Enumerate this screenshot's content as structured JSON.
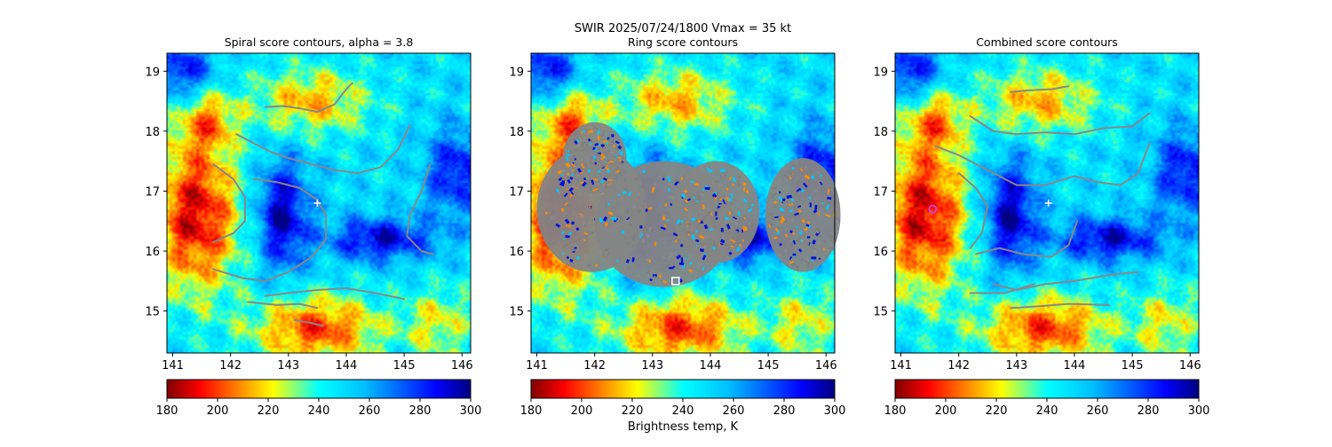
{
  "figure": {
    "suptitle": "SWIR  2025/07/24/1800    Vmax = 35 kt"
  },
  "chart_data": [
    {
      "type": "heatmap",
      "title": "Spiral score contours, alpha =  3.8",
      "xlim": [
        140.9,
        146.15
      ],
      "ylim": [
        14.3,
        19.3
      ],
      "x_ticks": [
        "141",
        "142",
        "143",
        "144",
        "145",
        "146"
      ],
      "y_ticks": [
        "15",
        "16",
        "17",
        "18",
        "19"
      ],
      "marker": {
        "symbol": "+",
        "color": "#ffffff",
        "lon": 143.5,
        "lat": 16.8
      },
      "contour_color": "#888888",
      "contours": [
        [
          [
            142.6,
            18.4
          ],
          [
            142.9,
            18.42
          ],
          [
            143.2,
            18.38
          ],
          [
            143.5,
            18.32
          ],
          [
            143.8,
            18.45
          ],
          [
            144.0,
            18.7
          ],
          [
            144.1,
            18.8
          ]
        ],
        [
          [
            142.1,
            17.95
          ],
          [
            142.4,
            17.8
          ],
          [
            142.7,
            17.65
          ],
          [
            143.0,
            17.55
          ],
          [
            143.4,
            17.45
          ],
          [
            143.8,
            17.35
          ],
          [
            144.2,
            17.3
          ],
          [
            144.6,
            17.4
          ],
          [
            144.9,
            17.7
          ],
          [
            145.1,
            18.1
          ]
        ],
        [
          [
            141.7,
            17.45
          ],
          [
            142.05,
            17.2
          ],
          [
            142.25,
            16.9
          ],
          [
            142.25,
            16.5
          ],
          [
            142.05,
            16.3
          ],
          [
            141.7,
            16.15
          ]
        ],
        [
          [
            142.4,
            17.2
          ],
          [
            142.8,
            17.15
          ],
          [
            143.2,
            17.05
          ],
          [
            143.5,
            16.85
          ],
          [
            143.65,
            16.6
          ],
          [
            143.65,
            16.2
          ],
          [
            143.4,
            15.9
          ],
          [
            143.0,
            15.65
          ],
          [
            142.6,
            15.5
          ],
          [
            142.2,
            15.55
          ],
          [
            141.7,
            15.7
          ]
        ],
        [
          [
            145.45,
            17.45
          ],
          [
            145.3,
            17.0
          ],
          [
            145.1,
            16.6
          ],
          [
            145.05,
            16.25
          ],
          [
            145.3,
            16.0
          ],
          [
            145.5,
            15.95
          ]
        ],
        [
          [
            142.6,
            15.25
          ],
          [
            143.0,
            15.3
          ],
          [
            143.5,
            15.35
          ],
          [
            144.0,
            15.38
          ],
          [
            144.5,
            15.3
          ],
          [
            145.0,
            15.2
          ]
        ],
        [
          [
            142.3,
            15.15
          ],
          [
            142.8,
            15.1
          ],
          [
            143.2,
            15.12
          ],
          [
            143.5,
            15.05
          ]
        ],
        [
          [
            143.1,
            14.85
          ],
          [
            143.4,
            14.8
          ],
          [
            143.6,
            14.75
          ]
        ]
      ]
    },
    {
      "type": "heatmap",
      "title": "Ring score contours",
      "xlim": [
        140.9,
        146.15
      ],
      "ylim": [
        14.3,
        19.3
      ],
      "x_ticks": [
        "141",
        "142",
        "143",
        "144",
        "145",
        "146"
      ],
      "y_ticks": [
        "15",
        "16",
        "17",
        "18",
        "19"
      ],
      "marker": {
        "symbol": "square",
        "color": "#ffffff",
        "lon": 143.4,
        "lat": 15.5
      },
      "ring_regions": [
        {
          "cx": 141.95,
          "cy": 16.7,
          "rx": 0.95,
          "ry": 1.05
        },
        {
          "cx": 142.0,
          "cy": 17.55,
          "rx": 0.55,
          "ry": 0.6
        },
        {
          "cx": 143.2,
          "cy": 16.45,
          "rx": 1.2,
          "ry": 1.05
        },
        {
          "cx": 144.1,
          "cy": 16.65,
          "rx": 0.75,
          "ry": 0.85
        },
        {
          "cx": 145.6,
          "cy": 16.6,
          "rx": 0.65,
          "ry": 0.95
        }
      ]
    },
    {
      "type": "heatmap",
      "title": "Combined score contours",
      "xlim": [
        140.9,
        146.15
      ],
      "ylim": [
        14.3,
        19.3
      ],
      "x_ticks": [
        "141",
        "142",
        "143",
        "144",
        "145",
        "146"
      ],
      "y_ticks": [
        "15",
        "16",
        "17",
        "18",
        "19"
      ],
      "marker": {
        "symbol": "+",
        "color": "#ffffff",
        "lon": 143.55,
        "lat": 16.8
      },
      "marker2": {
        "symbol": "circle",
        "color": "#cc44cc",
        "lon": 141.55,
        "lat": 16.7
      },
      "contour_color": "#888888",
      "contours": [
        [
          [
            142.9,
            18.65
          ],
          [
            143.2,
            18.68
          ],
          [
            143.6,
            18.7
          ],
          [
            143.9,
            18.75
          ]
        ],
        [
          [
            142.2,
            18.25
          ],
          [
            142.6,
            18.0
          ],
          [
            143.0,
            17.95
          ],
          [
            143.5,
            17.98
          ],
          [
            144.0,
            17.95
          ],
          [
            144.5,
            18.05
          ],
          [
            145.0,
            18.08
          ],
          [
            145.3,
            18.3
          ]
        ],
        [
          [
            141.6,
            17.75
          ],
          [
            142.0,
            17.6
          ],
          [
            142.5,
            17.35
          ],
          [
            143.0,
            17.1
          ],
          [
            143.5,
            17.1
          ],
          [
            144.0,
            17.25
          ],
          [
            144.4,
            17.15
          ],
          [
            144.8,
            17.1
          ],
          [
            145.1,
            17.3
          ],
          [
            145.3,
            17.8
          ]
        ],
        [
          [
            142.0,
            17.3
          ],
          [
            142.3,
            17.05
          ],
          [
            142.5,
            16.75
          ],
          [
            142.4,
            16.3
          ],
          [
            142.2,
            16.05
          ]
        ],
        [
          [
            142.3,
            15.95
          ],
          [
            142.7,
            16.05
          ],
          [
            143.1,
            15.95
          ],
          [
            143.6,
            15.9
          ],
          [
            143.9,
            16.1
          ],
          [
            144.05,
            16.5
          ]
        ],
        [
          [
            142.6,
            15.45
          ],
          [
            143.0,
            15.35
          ],
          [
            143.5,
            15.45
          ],
          [
            144.0,
            15.5
          ],
          [
            144.6,
            15.6
          ],
          [
            145.1,
            15.65
          ]
        ],
        [
          [
            142.2,
            15.3
          ],
          [
            142.8,
            15.3
          ],
          [
            143.3,
            15.45
          ]
        ],
        [
          [
            142.9,
            15.05
          ],
          [
            143.4,
            15.08
          ],
          [
            143.9,
            15.12
          ],
          [
            144.6,
            15.1
          ]
        ]
      ]
    }
  ],
  "colorbars": [
    {
      "ticks": [
        "180",
        "200",
        "220",
        "240",
        "260",
        "280",
        "300"
      ],
      "range": [
        180,
        300
      ],
      "label": ""
    },
    {
      "ticks": [
        "180",
        "200",
        "220",
        "240",
        "260",
        "280",
        "300"
      ],
      "range": [
        180,
        300
      ],
      "label": "Brightness temp, K"
    },
    {
      "ticks": [
        "180",
        "200",
        "220",
        "240",
        "260",
        "280",
        "300"
      ],
      "range": [
        180,
        300
      ],
      "label": ""
    }
  ]
}
